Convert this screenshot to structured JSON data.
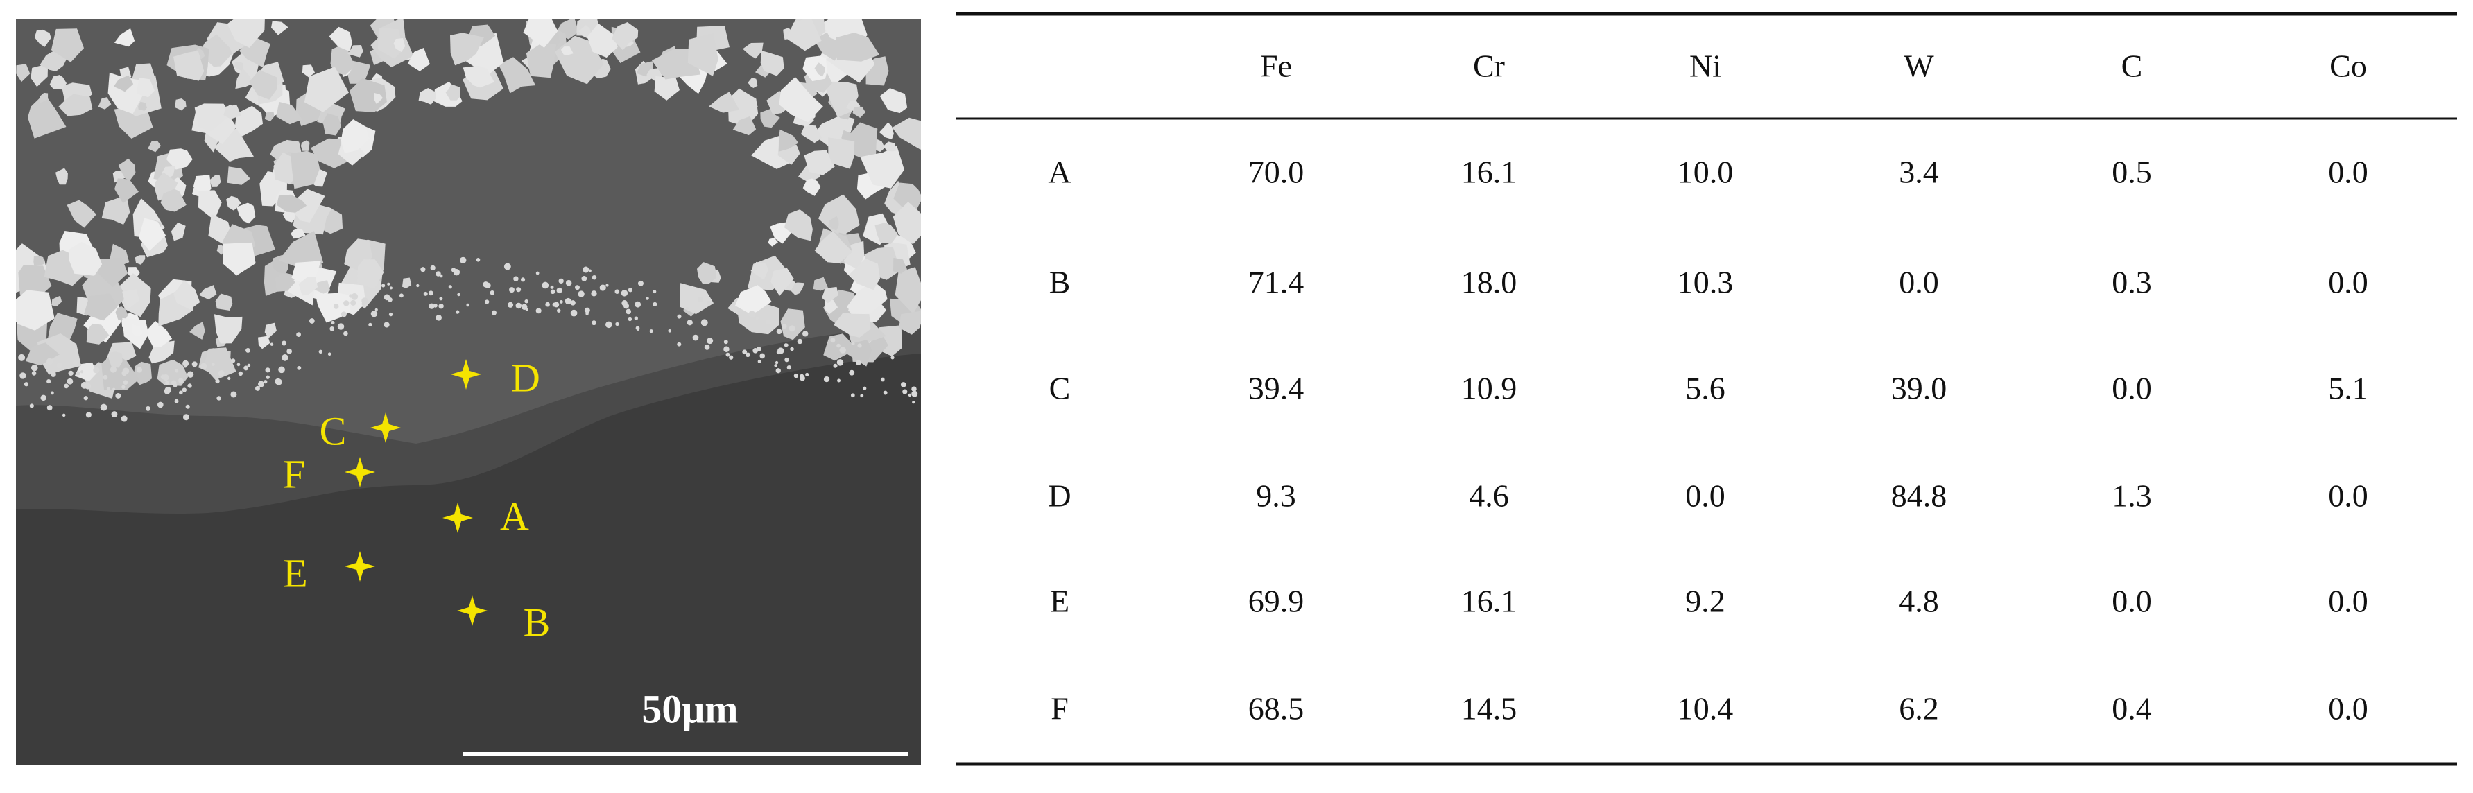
{
  "image": {
    "points": [
      "A",
      "B",
      "C",
      "D",
      "E",
      "F"
    ],
    "scale_bar": "50μm"
  },
  "table": {
    "columns": [
      "Fe",
      "Cr",
      "Ni",
      "W",
      "C",
      "Co"
    ],
    "rows": [
      {
        "label": "A",
        "values": [
          "70.0",
          "16.1",
          "10.0",
          "3.4",
          "0.5",
          "0.0"
        ]
      },
      {
        "label": "B",
        "values": [
          "71.4",
          "18.0",
          "10.3",
          "0.0",
          "0.3",
          "0.0"
        ]
      },
      {
        "label": "C",
        "values": [
          "39.4",
          "10.9",
          "5.6",
          "39.0",
          "0.0",
          "5.1"
        ]
      },
      {
        "label": "D",
        "values": [
          "9.3",
          "4.6",
          "0.0",
          "84.8",
          "1.3",
          "0.0"
        ]
      },
      {
        "label": "E",
        "values": [
          "69.9",
          "16.1",
          "9.2",
          "4.8",
          "0.0",
          "0.0"
        ]
      },
      {
        "label": "F",
        "values": [
          "68.5",
          "14.5",
          "10.4",
          "6.2",
          "0.4",
          "0.0"
        ]
      }
    ]
  }
}
